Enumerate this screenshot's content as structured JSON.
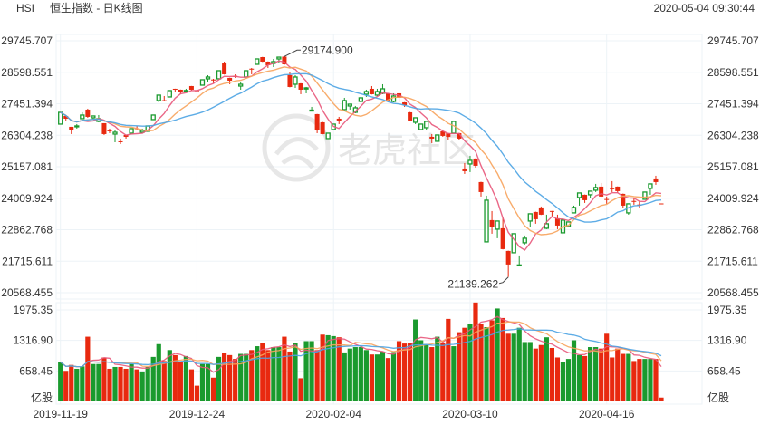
{
  "header": {
    "symbol": "HSI",
    "title": "恒生指数 - 日K线图",
    "timestamp": "2020-05-04 09:30:44"
  },
  "watermark": "老虎社区",
  "colors": {
    "up": "#1a9a2e",
    "down": "#e8290f",
    "ma5": "#e8577a",
    "ma10": "#f7a35c",
    "ma20": "#4ba3e3",
    "grid": "#edf3f7",
    "text": "#333333"
  },
  "chart_data": {
    "type": "candlestick",
    "title": "恒生指数 - 日K线图",
    "price_ticks": [
      "29745.707",
      "28598.551",
      "27451.394",
      "26304.238",
      "25157.081",
      "24009.924",
      "22862.768",
      "21715.611",
      "20568.455"
    ],
    "ylim": [
      20568.455,
      29745.707
    ],
    "volume_ticks": [
      "1975.35",
      "1316.90",
      "658.45"
    ],
    "volume_unit": "亿股",
    "volume_ylim": [
      0,
      1975.35
    ],
    "x_labels": [
      {
        "index": 0,
        "label": "2019-11-19"
      },
      {
        "index": 25,
        "label": "2019-12-24"
      },
      {
        "index": 50,
        "label": "2020-02-04"
      },
      {
        "index": 75,
        "label": "2020-03-10"
      },
      {
        "index": 100,
        "label": "2020-04-16"
      }
    ],
    "max_annotation": {
      "index": 41,
      "value": "29174.900"
    },
    "min_annotation": {
      "index": 82,
      "value": "21139.262"
    },
    "moving_averages": [
      5,
      10,
      20
    ],
    "ohlc_fields": [
      "open",
      "high",
      "low",
      "close"
    ],
    "ohlc": [
      [
        26710,
        27139,
        26710,
        27139
      ],
      [
        27007,
        27007,
        26842,
        26908
      ],
      [
        26611,
        26611,
        26347,
        26479
      ],
      [
        26611,
        26710,
        26545,
        26644
      ],
      [
        26908,
        27139,
        26908,
        27040
      ],
      [
        27238,
        27271,
        26941,
        26974
      ],
      [
        26941,
        27007,
        26908,
        27007
      ],
      [
        26809,
        27040,
        26776,
        26908
      ],
      [
        26743,
        26743,
        26314,
        26347
      ],
      [
        26479,
        26545,
        26380,
        26460
      ],
      [
        26347,
        26479,
        26050,
        26413
      ],
      [
        26083,
        26182,
        25984,
        26070
      ],
      [
        26314,
        26314,
        26182,
        26248
      ],
      [
        26380,
        26560,
        26370,
        26545
      ],
      [
        26560,
        26644,
        26479,
        26540
      ],
      [
        26413,
        26545,
        26380,
        26479
      ],
      [
        26446,
        26660,
        26430,
        26644
      ],
      [
        26875,
        27050,
        26860,
        27040
      ],
      [
        27568,
        27780,
        27502,
        27766
      ],
      [
        27580,
        27733,
        27560,
        27568
      ],
      [
        27700,
        27945,
        27690,
        27931
      ],
      [
        27997,
        28000,
        27865,
        27964
      ],
      [
        27964,
        27970,
        27799,
        27865
      ],
      [
        27920,
        27997,
        27865,
        27935
      ],
      [
        28096,
        28100,
        27931,
        27964
      ],
      [
        27940,
        27964,
        27865,
        27925
      ],
      [
        28129,
        28340,
        28120,
        28327
      ],
      [
        28360,
        28492,
        28261,
        28426
      ],
      [
        28335,
        28360,
        28195,
        28320
      ],
      [
        28360,
        28670,
        28350,
        28657
      ],
      [
        28921,
        28987,
        28515,
        28525
      ],
      [
        28393,
        28400,
        28162,
        28294
      ],
      [
        28470,
        28525,
        28393,
        28455
      ],
      [
        28096,
        28261,
        27964,
        28162
      ],
      [
        28426,
        28670,
        28415,
        28657
      ],
      [
        28730,
        28756,
        28525,
        28720
      ],
      [
        28888,
        29100,
        28875,
        29086
      ],
      [
        29151,
        29160,
        28975,
        28987
      ],
      [
        28987,
        28995,
        28756,
        28855
      ],
      [
        28921,
        29086,
        28789,
        28987
      ],
      [
        29086,
        29160,
        28954,
        29150
      ],
      [
        29170,
        29174.9,
        28870,
        28888
      ],
      [
        28492,
        28591,
        28050,
        28063
      ],
      [
        28162,
        28492,
        28030,
        28426
      ],
      [
        28195,
        28200,
        27799,
        27964
      ],
      [
        27990,
        28063,
        27832,
        28030
      ],
      [
        27190,
        27337,
        27170,
        27220
      ],
      [
        27073,
        27080,
        26380,
        26479
      ],
      [
        26776,
        26790,
        26340,
        26347
      ],
      [
        26182,
        26390,
        26170,
        26380
      ],
      [
        26512,
        26720,
        26500,
        26710
      ],
      [
        26908,
        26974,
        26710,
        26842
      ],
      [
        27238,
        27667,
        27172,
        27568
      ],
      [
        27370,
        27445,
        27238,
        27436
      ],
      [
        27139,
        27370,
        27106,
        27304
      ],
      [
        27535,
        27700,
        27502,
        27667
      ],
      [
        27799,
        27964,
        27700,
        27898
      ],
      [
        27997,
        28096,
        27790,
        27799
      ],
      [
        27766,
        27997,
        27733,
        27898
      ],
      [
        27832,
        28162,
        27799,
        27997
      ],
      [
        27832,
        27840,
        27525,
        27535
      ],
      [
        27535,
        27832,
        27502,
        27733
      ],
      [
        27832,
        27840,
        27502,
        27667
      ],
      [
        27502,
        27510,
        27337,
        27403
      ],
      [
        27139,
        27150,
        26830,
        26842
      ],
      [
        26776,
        26950,
        26710,
        26941
      ],
      [
        26512,
        26720,
        26500,
        26710
      ],
      [
        26578,
        26820,
        26479,
        26809
      ],
      [
        26248,
        26347,
        26017,
        26182
      ],
      [
        26083,
        26325,
        26070,
        26314
      ],
      [
        26446,
        26512,
        26248,
        26281
      ],
      [
        26380,
        26390,
        26116,
        26248
      ],
      [
        26380,
        26842,
        26370,
        26809
      ],
      [
        26380,
        26390,
        26116,
        26182
      ],
      [
        25093,
        25291,
        24895,
        24994
      ],
      [
        25258,
        25555,
        24961,
        25390
      ],
      [
        25456,
        25465,
        25126,
        25192
      ],
      [
        24598,
        24610,
        24070,
        24235
      ],
      [
        22420,
        24103,
        22410,
        23938
      ],
      [
        23212,
        23542,
        22717,
        22948
      ],
      [
        22882,
        23190,
        22552,
        23179
      ],
      [
        22915,
        23311,
        22145,
        22156
      ],
      [
        22090,
        22100,
        21139.262,
        21595
      ],
      [
        22024,
        22730,
        22010,
        22717
      ],
      [
        21560,
        21925,
        21530,
        21580
      ],
      [
        22387,
        22651,
        22321,
        22552
      ],
      [
        23179,
        23455,
        22948,
        23443
      ],
      [
        23509,
        23520,
        23080,
        23245
      ],
      [
        23674,
        23707,
        23400,
        23410
      ],
      [
        22915,
        23410,
        22882,
        23080
      ],
      [
        23545,
        23545,
        23311,
        23530
      ],
      [
        23278,
        23410,
        22882,
        23014
      ],
      [
        22750,
        23222,
        22684,
        23212
      ],
      [
        22981,
        23160,
        22970,
        23146
      ],
      [
        23476,
        23740,
        23466,
        23674
      ],
      [
        24037,
        24215,
        23740,
        24202
      ],
      [
        24136,
        24145,
        23839,
        23938
      ],
      [
        24136,
        24280,
        24004,
        24268
      ],
      [
        24301,
        24532,
        24235,
        24400
      ],
      [
        24433,
        24565,
        24060,
        24070
      ],
      [
        23980,
        24070,
        23806,
        23960
      ],
      [
        24370,
        24631,
        24235,
        24355
      ],
      [
        24433,
        24440,
        24202,
        24268
      ],
      [
        24169,
        24180,
        23641,
        23740
      ],
      [
        23476,
        23815,
        23410,
        23806
      ],
      [
        23910,
        24037,
        23773,
        23895
      ],
      [
        23780,
        23905,
        23674,
        23765
      ],
      [
        23971,
        24245,
        23960,
        24235
      ],
      [
        24367,
        24545,
        24136,
        24532
      ],
      [
        24730,
        24829,
        24499,
        24598
      ],
      [
        23820,
        23820,
        23806,
        23806
      ]
    ],
    "volume": [
      852,
      660,
      788,
      705,
      756,
      1397,
      807,
      807,
      949,
      705,
      744,
      744,
      705,
      807,
      692,
      647,
      744,
      961,
      1237,
      872,
      1109,
      1000,
      852,
      980,
      692,
      340,
      807,
      807,
      513,
      961,
      1045,
      1000,
      917,
      1026,
      1026,
      1109,
      1192,
      1256,
      1109,
      1173,
      1173,
      1397,
      1077,
      1256,
      500,
      1301,
      1301,
      1109,
      1442,
      1429,
      1410,
      1385,
      1058,
      1141,
      1173,
      1173,
      1109,
      1013,
      1013,
      1077,
      936,
      1064,
      1301,
      1250,
      1269,
      1769,
      1320,
      1237,
      1173,
      1397,
      1269,
      1782,
      1192,
      1494,
      1590,
      1667,
      2135,
      1667,
      1603,
      1750,
      2006,
      1801,
      1461,
      1461,
      1590,
      1282,
      1282,
      1141,
      1218,
      1385,
      1154,
      949,
      852,
      917,
      1320,
      1000,
      980,
      1173,
      1173,
      1141,
      1461,
      949,
      1141,
      1026,
      1026,
      872,
      917,
      917,
      917,
      917,
      83
    ]
  }
}
